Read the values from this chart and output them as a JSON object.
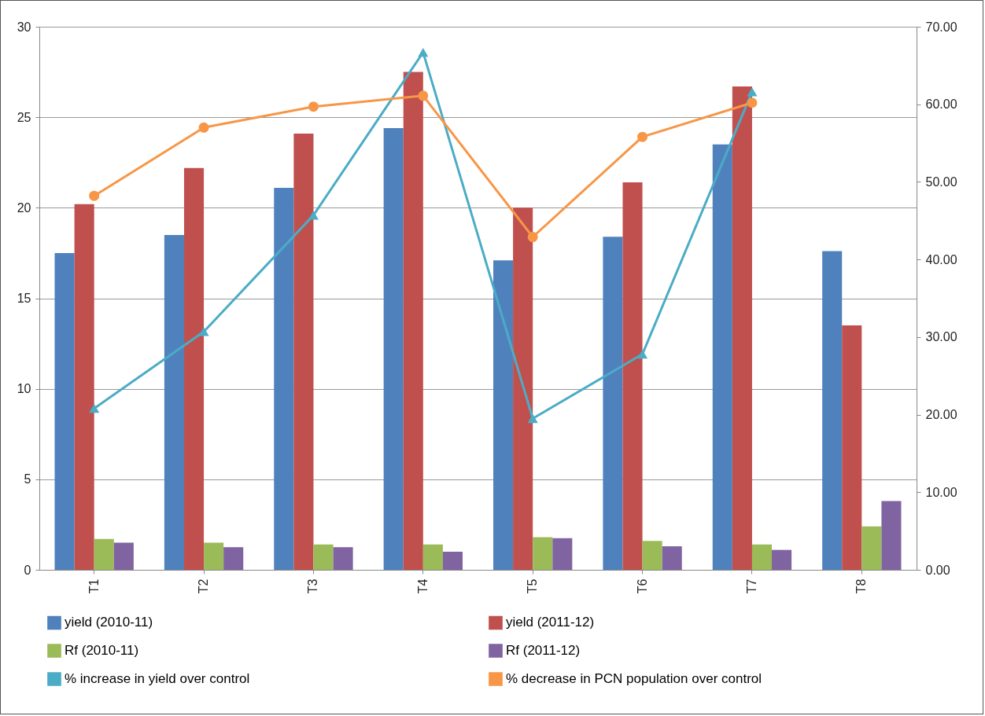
{
  "chart_data": {
    "type": "bar",
    "categories": [
      "T1",
      "T2",
      "T3",
      "T4",
      "T5",
      "T6",
      "T7",
      "T8"
    ],
    "series": [
      {
        "name": "yield (2010-11)",
        "color": "#4f81bd",
        "values": [
          17.5,
          18.5,
          21.1,
          24.4,
          17.1,
          18.4,
          23.5,
          17.6
        ]
      },
      {
        "name": "yield (2011-12)",
        "color": "#c0504d",
        "values": [
          20.2,
          22.2,
          24.1,
          27.5,
          20.0,
          21.4,
          26.7,
          13.5
        ]
      },
      {
        "name": "Rf (2010-11)",
        "color": "#9bbb59",
        "values": [
          1.7,
          1.5,
          1.4,
          1.4,
          1.8,
          1.6,
          1.4,
          2.4
        ]
      },
      {
        "name": "Rf (2011-12)",
        "color": "#8064a2",
        "values": [
          1.5,
          1.25,
          1.25,
          1.0,
          1.75,
          1.3,
          1.1,
          3.8
        ]
      },
      {
        "name": "% increase in yield over control",
        "type": "line",
        "axis": "y2",
        "marker": "triangle",
        "color": "#4bacc6",
        "values": [
          20.8,
          30.7,
          45.7,
          66.7,
          19.5,
          27.8,
          61.6,
          null
        ]
      },
      {
        "name": "% decrease in PCN population over control",
        "type": "line",
        "axis": "y2",
        "marker": "circle",
        "color": "#f79646",
        "values": [
          48.2,
          57.0,
          59.7,
          61.1,
          42.9,
          55.8,
          60.2,
          null
        ]
      }
    ],
    "ylim": [
      0,
      30
    ],
    "yticks": [
      0,
      5,
      10,
      15,
      20,
      25,
      30
    ],
    "y2lim": [
      0,
      70
    ],
    "y2ticks": [
      {
        "value": 0,
        "label": "0.00"
      },
      {
        "value": 10,
        "label": "10.00"
      },
      {
        "value": 20,
        "label": "20.00"
      },
      {
        "value": 30,
        "label": "30.00"
      },
      {
        "value": 40,
        "label": "40.00"
      },
      {
        "value": 50,
        "label": "50.00"
      },
      {
        "value": 60,
        "label": "60.00"
      },
      {
        "value": 70,
        "label": "70.00"
      }
    ],
    "grid": "y",
    "legend": "bottom"
  }
}
